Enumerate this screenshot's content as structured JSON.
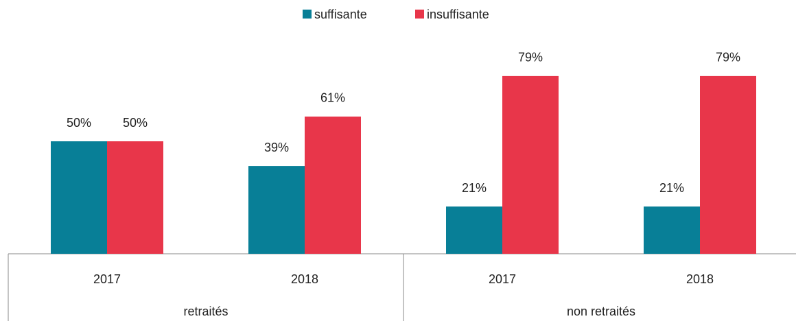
{
  "chart_data": {
    "type": "bar",
    "groups": [
      {
        "label": "retraités",
        "categories": [
          "2017",
          "2018"
        ]
      },
      {
        "label": "non retraités",
        "categories": [
          "2017",
          "2018"
        ]
      }
    ],
    "series": [
      {
        "name": "suffisante",
        "color": "#087f97",
        "values": [
          50,
          39,
          21,
          21
        ],
        "value_labels": [
          "50%",
          "39%",
          "21%",
          "21%"
        ]
      },
      {
        "name": "insuffisante",
        "color": "#e8364a",
        "values": [
          50,
          61,
          79,
          79
        ],
        "value_labels": [
          "50%",
          "61%",
          "79%",
          "79%"
        ]
      }
    ],
    "ylim": [
      0,
      100
    ],
    "legend": "top"
  }
}
